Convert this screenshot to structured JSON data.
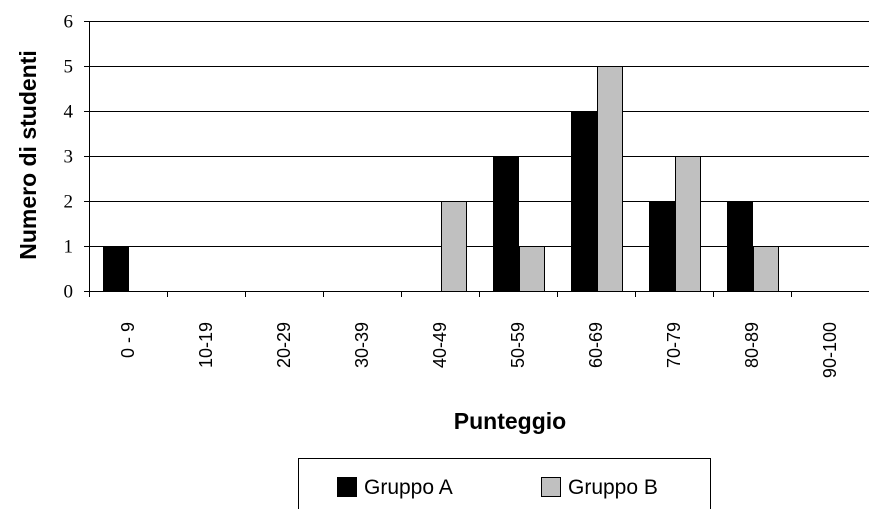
{
  "chart_data": {
    "type": "bar",
    "categories": [
      "0 - 9",
      "10-19",
      "20-29",
      "30-39",
      "40-49",
      "50-59",
      "60-69",
      "70-79",
      "80-89",
      "90-100"
    ],
    "series": [
      {
        "name": "Gruppo A",
        "values": [
          1,
          0,
          0,
          0,
          0,
          3,
          4,
          2,
          2,
          0
        ],
        "color": "#000000"
      },
      {
        "name": "Gruppo B",
        "values": [
          0,
          0,
          0,
          0,
          2,
          1,
          5,
          3,
          1,
          0
        ],
        "color": "#c0c0c0"
      }
    ],
    "title": "",
    "xlabel": "Punteggio",
    "ylabel": "Numero di studenti",
    "ylim": [
      0,
      6
    ],
    "yticks": [
      0,
      1,
      2,
      3,
      4,
      5,
      6
    ],
    "grid": true,
    "legend": "bottom"
  }
}
